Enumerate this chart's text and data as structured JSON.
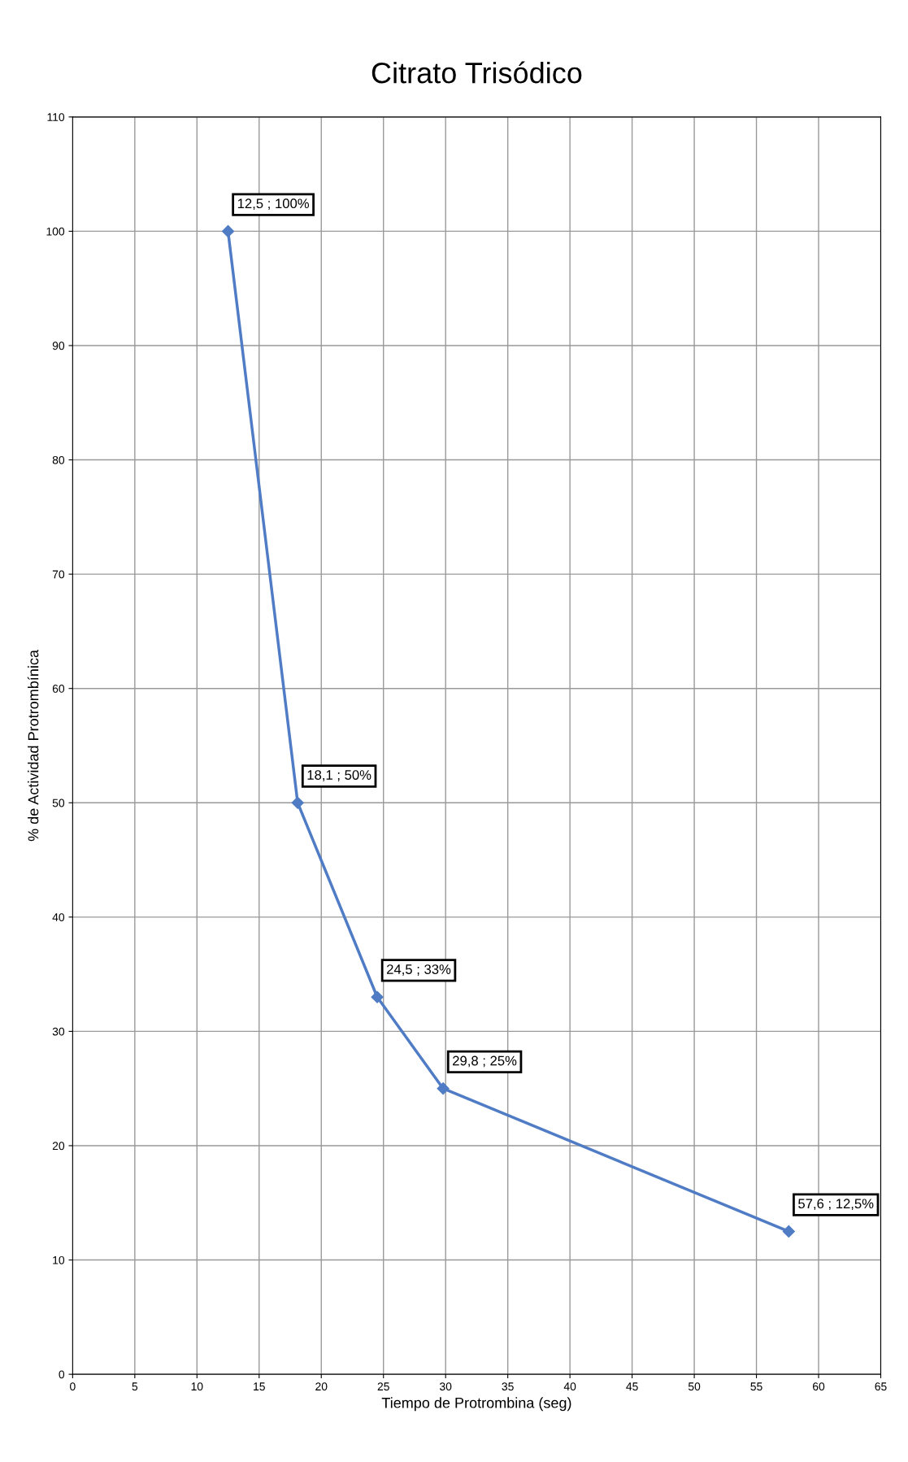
{
  "chart_data": {
    "type": "line",
    "title": "Citrato Trisódico",
    "xlabel": "Tiempo de Protrombina (seg)",
    "ylabel": "% de Actividad Protrombínica",
    "x": [
      12.5,
      18.1,
      24.5,
      29.8,
      57.6
    ],
    "series": [
      {
        "color": "#4f7cc4",
        "values": [
          100,
          50,
          33,
          25,
          12.5
        ],
        "value_labels": [
          "12,5 ; 100%",
          "18,1 ; 50%",
          "24,5 ; 33%",
          "29,8 ; 25%",
          "57,6 ; 12,5%"
        ]
      }
    ],
    "xlim": [
      0,
      65
    ],
    "xticks": [
      0,
      5,
      10,
      15,
      20,
      25,
      30,
      35,
      40,
      45,
      50,
      55,
      60,
      65
    ],
    "ylim": [
      0,
      110
    ],
    "yticks": [
      0,
      10,
      20,
      30,
      40,
      50,
      60,
      70,
      80,
      90,
      100,
      110
    ],
    "grid": true,
    "marker": "diamond",
    "line_style": "solid"
  }
}
